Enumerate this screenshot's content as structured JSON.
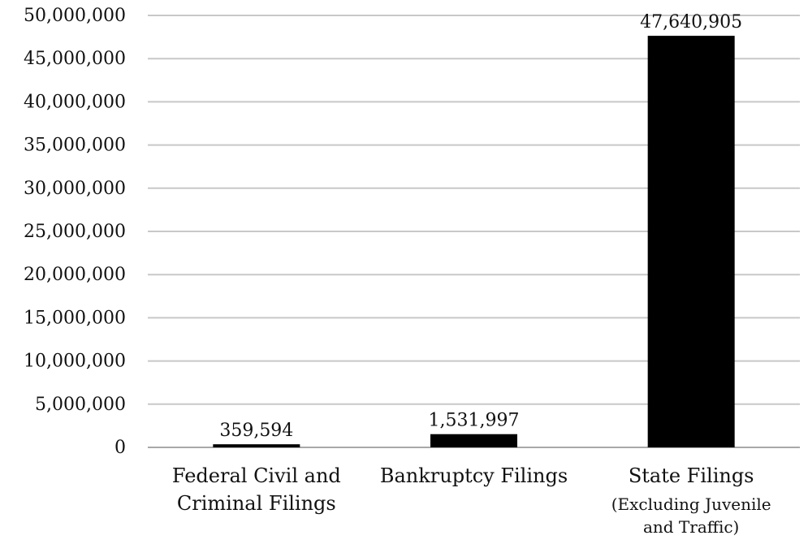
{
  "chart_data": {
    "type": "bar",
    "categories": [
      [
        "Federal Civil and",
        "Criminal Filings"
      ],
      [
        "Bankruptcy Filings"
      ],
      [
        "State Filings",
        "(Excluding Juvenile",
        "and Traffic)"
      ]
    ],
    "values": [
      359594,
      1531997,
      47640905
    ],
    "value_labels": [
      "359,594",
      "1,531,997",
      "47,640,905"
    ],
    "ylim": [
      0,
      50000000
    ],
    "yticks": [
      0,
      5000000,
      10000000,
      15000000,
      20000000,
      25000000,
      30000000,
      35000000,
      40000000,
      45000000,
      50000000
    ],
    "ytick_labels": [
      "0",
      "5,000,000",
      "10,000,000",
      "15,000,000",
      "20,000,000",
      "25,000,000",
      "30,000,000",
      "35,000,000",
      "40,000,000",
      "45,000,000",
      "50,000,000"
    ],
    "grid": true,
    "bar_color": "#000000",
    "grid_color": "#c8c8c8",
    "title": "",
    "xlabel": "",
    "ylabel": ""
  }
}
